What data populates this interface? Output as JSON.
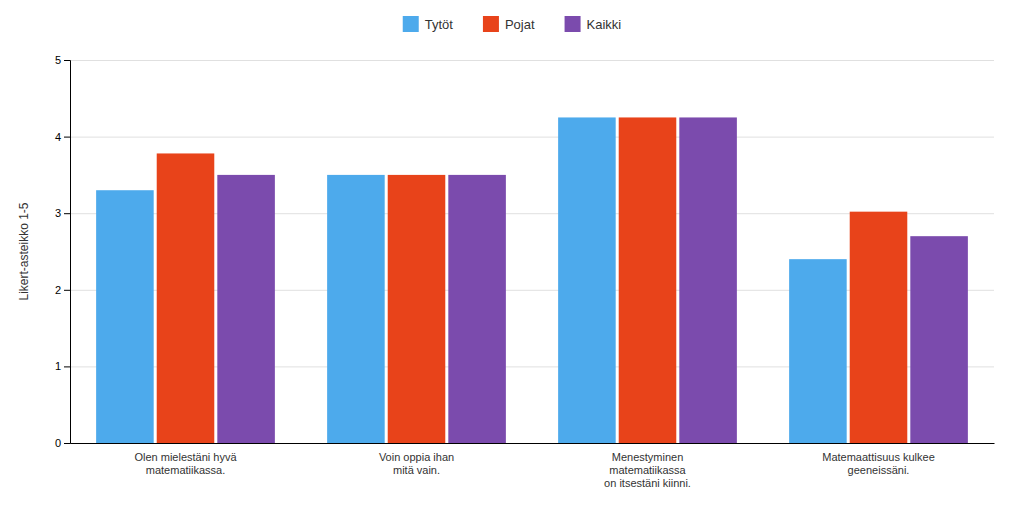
{
  "chart_data": {
    "type": "bar",
    "categories": [
      "Olen mielestäni hyvä\nmatematiikassa.",
      "Voin oppia ihan\nmitä vain.",
      "Menestyminen\nmatematiikassa\non itsestäni kiinni.",
      "Matemaattisuus kulkee\ngeeneissäni."
    ],
    "series": [
      {
        "name": "Tytöt",
        "color": "#4DAAEC",
        "values": [
          3.3,
          3.5,
          4.25,
          2.4
        ]
      },
      {
        "name": "Pojat",
        "color": "#E8431A",
        "values": [
          3.78,
          3.5,
          4.25,
          3.02
        ]
      },
      {
        "name": "Kaikki",
        "color": "#7B4BAD",
        "values": [
          3.5,
          3.5,
          4.25,
          2.7
        ]
      }
    ],
    "ylabel": "Likert-asteikko 1-5",
    "ylim": [
      0,
      5
    ],
    "yticks": [
      0,
      1,
      2,
      3,
      4,
      5
    ],
    "grid": true,
    "legend": "top"
  }
}
